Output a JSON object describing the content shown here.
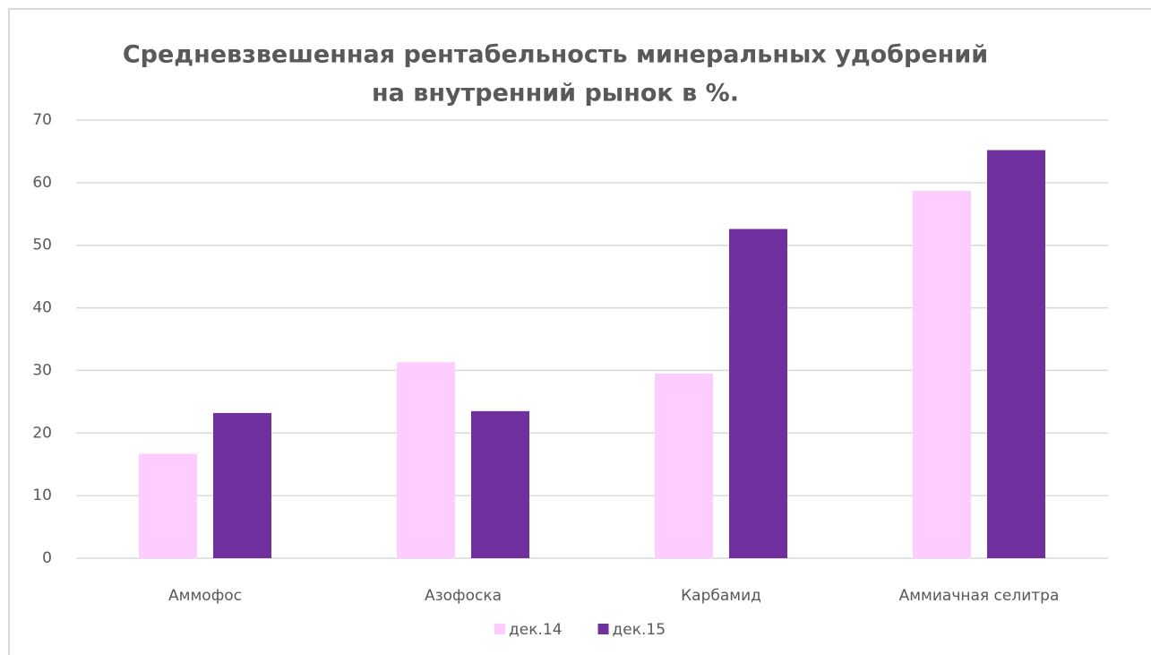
{
  "chart_data": {
    "type": "bar",
    "title": [
      "Средневзвешенная рентабельность минеральных удобрений",
      "на внутренний рынок в %."
    ],
    "categories": [
      "Аммофос",
      "Азофоска",
      "Карбамид",
      "Аммиачная селитра"
    ],
    "series": [
      {
        "name": "дек.14",
        "color": "#ffccff",
        "values": [
          16.7,
          31.3,
          29.5,
          58.7
        ]
      },
      {
        "name": "дек.15",
        "color": "#7030a0",
        "values": [
          23.2,
          23.5,
          52.6,
          65.2
        ]
      }
    ],
    "ylim": [
      0,
      70
    ],
    "yticks": [
      0,
      10,
      20,
      30,
      40,
      50,
      60,
      70
    ],
    "grid": true,
    "legend": "bottom"
  }
}
